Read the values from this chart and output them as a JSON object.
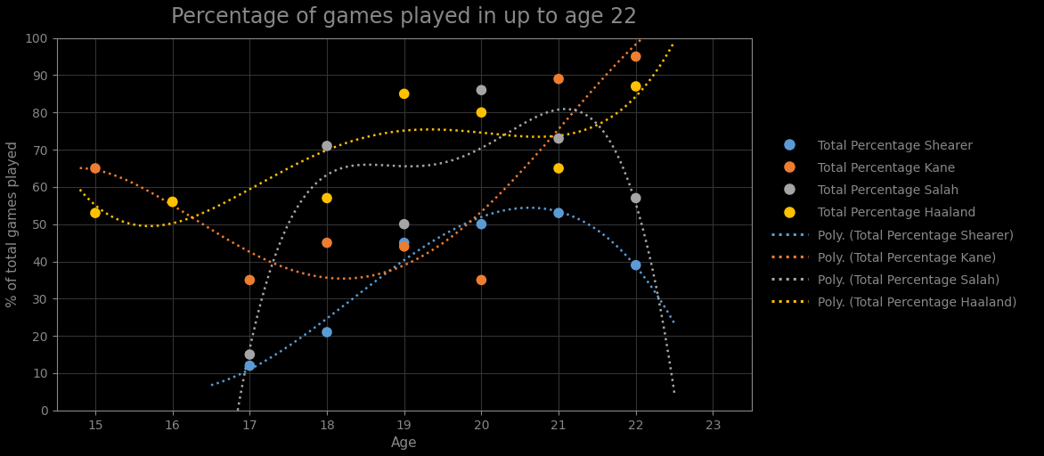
{
  "title": "Percentage of games played in up to age 22",
  "xlabel": "Age",
  "ylabel": "% of total games played",
  "xlim": [
    14.5,
    23.5
  ],
  "ylim": [
    0,
    100
  ],
  "xticks": [
    15,
    16,
    17,
    18,
    19,
    20,
    21,
    22,
    23
  ],
  "yticks": [
    0,
    10,
    20,
    30,
    40,
    50,
    60,
    70,
    80,
    90,
    100
  ],
  "shearer": {
    "ages": [
      17,
      18,
      19,
      20,
      21,
      22
    ],
    "values": [
      12,
      21,
      45,
      50,
      53,
      39
    ],
    "color": "#5B9BD5",
    "label": "Total Percentage Shearer",
    "poly_label": "Poly. (Total Percentage Shearer)",
    "poly_degree": 3,
    "x_start": 16.5,
    "x_end": 22.5
  },
  "kane": {
    "ages": [
      15,
      16,
      17,
      18,
      19,
      20,
      21,
      22
    ],
    "values": [
      65,
      56,
      35,
      45,
      44,
      35,
      89,
      95
    ],
    "color": "#ED7D31",
    "label": "Total Percentage Kane",
    "poly_label": "Poly. (Total Percentage Kane)",
    "poly_degree": 4,
    "x_start": 14.8,
    "x_end": 22.5
  },
  "salah": {
    "ages": [
      17,
      18,
      19,
      20,
      21,
      22
    ],
    "values": [
      15,
      71,
      50,
      86,
      73,
      57
    ],
    "color": "#A5A5A5",
    "label": "Total Percentage Salah",
    "poly_label": "Poly. (Total Percentage Salah)",
    "poly_degree": 4,
    "x_start": 16.3,
    "x_end": 22.5
  },
  "haaland": {
    "ages": [
      15,
      16,
      18,
      19,
      20,
      21,
      22
    ],
    "values": [
      53,
      56,
      57,
      85,
      80,
      65,
      87
    ],
    "color": "#FFC000",
    "label": "Total Percentage Haaland",
    "poly_label": "Poly. (Total Percentage Haaland)",
    "poly_degree": 4,
    "x_start": 14.8,
    "x_end": 22.5
  },
  "background_color": "#000000",
  "text_color": "#888888",
  "grid_color": "#333333",
  "title_fontsize": 17,
  "axis_label_fontsize": 11,
  "tick_fontsize": 10,
  "legend_fontsize": 10,
  "dot_size": 70,
  "line_width": 1.8
}
